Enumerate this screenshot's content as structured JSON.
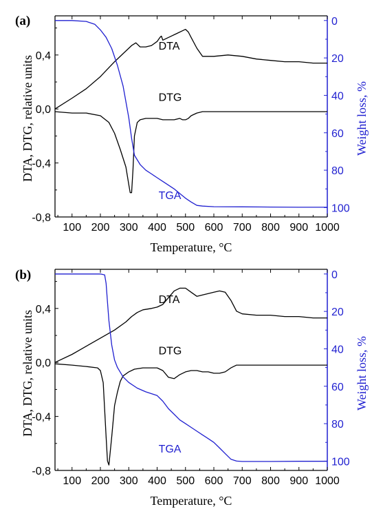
{
  "chart_data": [
    {
      "panel_label": "(a)",
      "type": "line",
      "xlabel": "Temperature, °C",
      "ylabel_left": "DTA, DTG, relative units",
      "ylabel_right": "Weight  loss, %",
      "xlim": [
        40,
        1000
      ],
      "ylim_left": [
        -0.8,
        0.69
      ],
      "ylim_right": [
        105,
        -2.5
      ],
      "x_ticks": [
        "100",
        "200",
        "300",
        "400",
        "500",
        "600",
        "700",
        "800",
        "900",
        "1000"
      ],
      "yl_ticks": [
        "-0,8",
        "-0,4",
        "0,0",
        "0,4"
      ],
      "yr_ticks": [
        "0",
        "20",
        "40",
        "60",
        "80",
        "100"
      ],
      "series_colors": {
        "DTA": "#000000",
        "DTG": "#000000",
        "TGA": "#1f1fd0"
      },
      "series": [
        {
          "name": "DTA",
          "axis": "left",
          "label_at": [
            405,
            0.44
          ],
          "x": [
            40,
            100,
            150,
            200,
            250,
            290,
            310,
            325,
            340,
            360,
            380,
            400,
            410,
            415,
            420,
            430,
            450,
            470,
            490,
            500,
            510,
            520,
            540,
            560,
            580,
            600,
            650,
            700,
            750,
            800,
            850,
            900,
            950,
            1000
          ],
          "y": [
            0.0,
            0.08,
            0.15,
            0.24,
            0.35,
            0.43,
            0.47,
            0.49,
            0.46,
            0.46,
            0.47,
            0.5,
            0.53,
            0.54,
            0.51,
            0.52,
            0.54,
            0.56,
            0.58,
            0.59,
            0.57,
            0.53,
            0.45,
            0.39,
            0.39,
            0.39,
            0.4,
            0.39,
            0.37,
            0.36,
            0.35,
            0.35,
            0.34,
            0.34
          ]
        },
        {
          "name": "DTG",
          "axis": "left",
          "label_at": [
            405,
            0.06
          ],
          "x": [
            40,
            100,
            150,
            200,
            230,
            250,
            270,
            290,
            300,
            305,
            310,
            315,
            320,
            330,
            340,
            360,
            380,
            400,
            420,
            440,
            460,
            480,
            490,
            500,
            510,
            520,
            540,
            560,
            600,
            700,
            800,
            900,
            1000
          ],
          "y": [
            -0.02,
            -0.03,
            -0.03,
            -0.05,
            -0.1,
            -0.18,
            -0.3,
            -0.43,
            -0.56,
            -0.62,
            -0.62,
            -0.45,
            -0.2,
            -0.1,
            -0.08,
            -0.07,
            -0.07,
            -0.07,
            -0.08,
            -0.08,
            -0.08,
            -0.07,
            -0.08,
            -0.08,
            -0.07,
            -0.05,
            -0.03,
            -0.02,
            -0.02,
            -0.02,
            -0.02,
            -0.02,
            -0.02
          ]
        },
        {
          "name": "TGA",
          "axis": "right",
          "label_at": [
            405,
            95.5
          ],
          "x": [
            40,
            100,
            150,
            180,
            200,
            220,
            240,
            260,
            280,
            300,
            310,
            320,
            340,
            360,
            380,
            400,
            420,
            440,
            460,
            480,
            500,
            520,
            540,
            560,
            600,
            700,
            800,
            900,
            1000
          ],
          "y": [
            0.0,
            0.0,
            0.5,
            2,
            5,
            9,
            15,
            24,
            35,
            52,
            63,
            72,
            77,
            80,
            82,
            84,
            86,
            88,
            90,
            92.5,
            95,
            97,
            98.8,
            99.2,
            99.5,
            99.6,
            99.7,
            99.8,
            99.8
          ]
        }
      ]
    },
    {
      "panel_label": "(b)",
      "type": "line",
      "xlabel": "Temperature, °C",
      "ylabel_left": "DTA, DTG, relative units",
      "ylabel_right": "Weight  loss, %",
      "xlim": [
        40,
        1000
      ],
      "ylim_left": [
        -0.8,
        0.69
      ],
      "ylim_right": [
        105,
        -2.5
      ],
      "x_ticks": [
        "100",
        "200",
        "300",
        "400",
        "500",
        "600",
        "700",
        "800",
        "900",
        "1000"
      ],
      "yl_ticks": [
        "-0,8",
        "-0,4",
        "0,0",
        "0,4"
      ],
      "yr_ticks": [
        "0",
        "20",
        "40",
        "60",
        "80",
        "100"
      ],
      "series_colors": {
        "DTA": "#000000",
        "DTG": "#000000",
        "TGA": "#1f1fd0"
      },
      "series": [
        {
          "name": "DTA",
          "axis": "left",
          "label_at": [
            405,
            0.44
          ],
          "x": [
            40,
            100,
            150,
            200,
            250,
            290,
            310,
            330,
            350,
            380,
            400,
            420,
            440,
            460,
            480,
            500,
            520,
            540,
            560,
            580,
            600,
            620,
            640,
            660,
            680,
            700,
            750,
            800,
            850,
            900,
            950,
            1000
          ],
          "y": [
            0.0,
            0.06,
            0.12,
            0.18,
            0.24,
            0.3,
            0.34,
            0.37,
            0.39,
            0.4,
            0.41,
            0.43,
            0.48,
            0.53,
            0.55,
            0.55,
            0.52,
            0.49,
            0.5,
            0.51,
            0.52,
            0.53,
            0.52,
            0.46,
            0.38,
            0.36,
            0.35,
            0.35,
            0.34,
            0.34,
            0.33,
            0.33
          ]
        },
        {
          "name": "DTG",
          "axis": "left",
          "label_at": [
            405,
            0.06
          ],
          "x": [
            40,
            100,
            150,
            190,
            200,
            210,
            215,
            220,
            225,
            230,
            240,
            250,
            260,
            270,
            280,
            300,
            320,
            350,
            380,
            400,
            420,
            440,
            460,
            480,
            500,
            520,
            540,
            560,
            580,
            600,
            620,
            640,
            660,
            680,
            700,
            800,
            900,
            1000
          ],
          "y": [
            -0.01,
            -0.02,
            -0.03,
            -0.04,
            -0.06,
            -0.15,
            -0.35,
            -0.55,
            -0.73,
            -0.76,
            -0.55,
            -0.32,
            -0.22,
            -0.14,
            -0.1,
            -0.07,
            -0.05,
            -0.04,
            -0.04,
            -0.04,
            -0.06,
            -0.11,
            -0.12,
            -0.09,
            -0.07,
            -0.06,
            -0.06,
            -0.07,
            -0.07,
            -0.08,
            -0.08,
            -0.07,
            -0.04,
            -0.02,
            -0.02,
            -0.02,
            -0.02,
            -0.02
          ]
        },
        {
          "name": "TGA",
          "axis": "right",
          "label_at": [
            405,
            95.5
          ],
          "x": [
            40,
            100,
            150,
            200,
            215,
            220,
            225,
            230,
            240,
            250,
            260,
            280,
            300,
            330,
            360,
            400,
            420,
            440,
            460,
            480,
            500,
            520,
            540,
            560,
            580,
            600,
            620,
            640,
            660,
            680,
            700,
            800,
            900,
            1000
          ],
          "y": [
            0.0,
            0.0,
            0.0,
            0.0,
            0.5,
            5,
            15,
            25,
            38,
            46,
            50,
            55,
            58,
            61,
            63,
            65,
            68,
            72,
            75,
            78,
            80,
            82,
            84,
            86,
            88,
            90,
            93,
            96,
            99,
            100,
            100.2,
            100.2,
            100.1,
            100.1
          ]
        }
      ]
    }
  ]
}
